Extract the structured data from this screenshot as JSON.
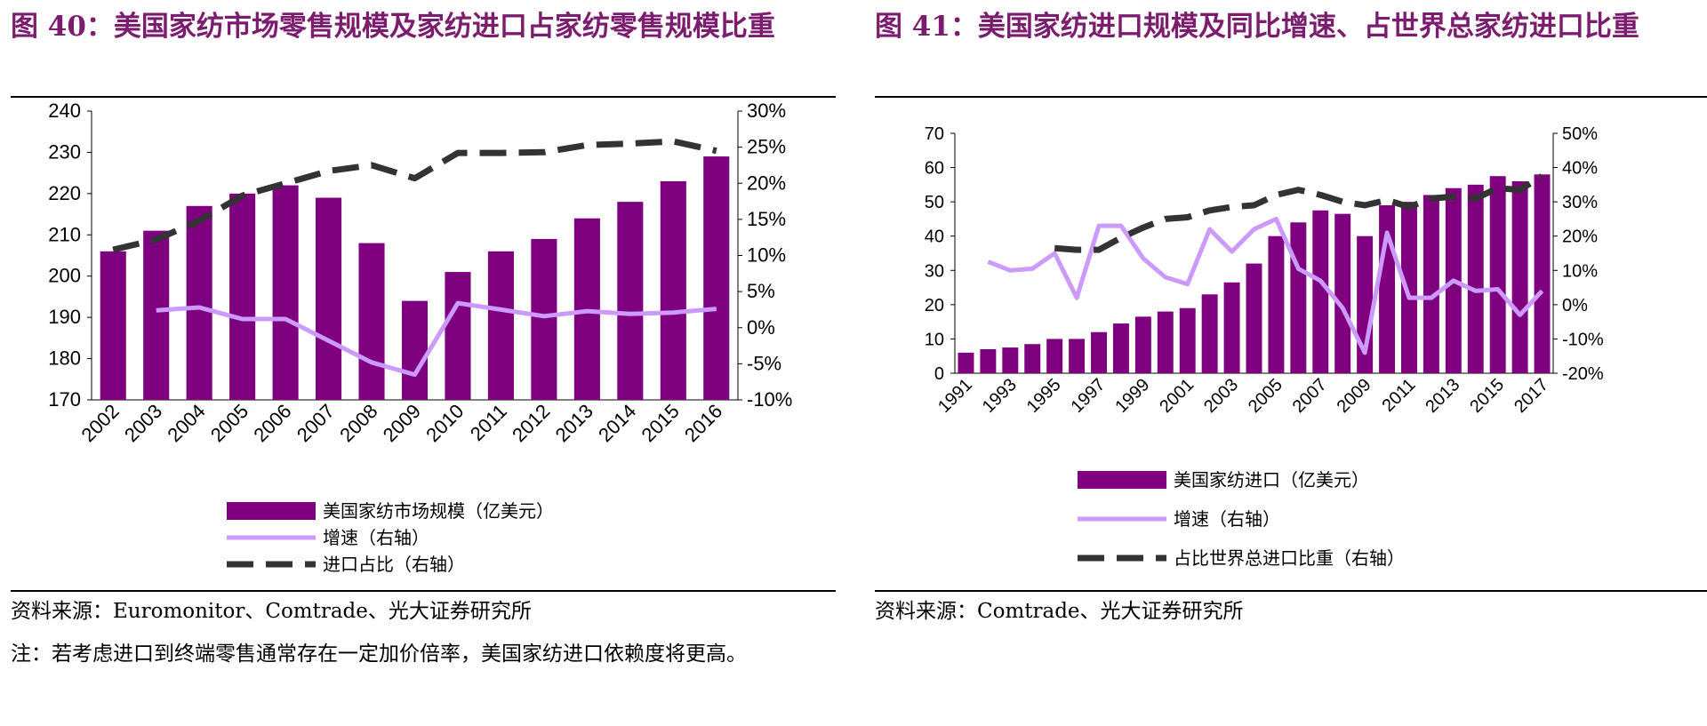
{
  "left": {
    "title": "图 40：美国家纺市场零售规模及家纺进口占家纺零售规模比重",
    "source": "资料来源：Euromonitor、Comtrade、光大证券研究所",
    "note": "注：若考虑进口到终端零售通常存在一定加价倍率，美国家纺进口依赖度将更高。"
  },
  "right": {
    "title": "图 41：美国家纺进口规模及同比增速、占世界总家纺进口比重",
    "source": "资料来源：Comtrade、光大证券研究所"
  },
  "colors": {
    "bar": "#7f007f",
    "growth": "#cc99ff",
    "share": "#333333",
    "title": "#7b1c6e"
  },
  "chart_data": [
    {
      "type": "bar",
      "categories": [
        "2002",
        "2003",
        "2004",
        "2005",
        "2006",
        "2007",
        "2008",
        "2009",
        "2010",
        "2011",
        "2012",
        "2013",
        "2014",
        "2015",
        "2016"
      ],
      "series": [
        {
          "name": "美国家纺市场规模（亿美元）",
          "type": "bar",
          "axis": "left",
          "values": [
            206,
            211,
            217,
            220,
            222,
            219,
            208,
            194,
            201,
            206,
            209,
            214,
            218,
            223,
            229
          ]
        },
        {
          "name": "增速（右轴）",
          "type": "line",
          "axis": "right",
          "x": [
            "2003",
            "2004",
            "2005",
            "2006",
            "2007",
            "2008",
            "2009",
            "2010",
            "2011",
            "2012",
            "2013",
            "2014",
            "2015",
            "2016"
          ],
          "values": [
            2.4,
            2.8,
            1.2,
            1.2,
            -1.8,
            -4.8,
            -6.5,
            3.4,
            2.5,
            1.6,
            2.3,
            1.9,
            2.1,
            2.6
          ]
        },
        {
          "name": "进口占比（右轴）",
          "type": "line",
          "style": "dashed",
          "axis": "right",
          "values": [
            10.8,
            12.2,
            14.8,
            18.3,
            20.0,
            21.7,
            22.5,
            20.7,
            24.2,
            24.2,
            24.3,
            25.3,
            25.5,
            25.8,
            24.5
          ]
        }
      ],
      "y_left": {
        "min": 170,
        "max": 240,
        "step": 10
      },
      "y_right": {
        "min": -10,
        "max": 30,
        "step": 5,
        "unit": "%"
      },
      "legend": "bottom"
    },
    {
      "type": "bar",
      "categories": [
        "1991",
        "1992",
        "1993",
        "1994",
        "1995",
        "1996",
        "1997",
        "1998",
        "1999",
        "2000",
        "2001",
        "2002",
        "2003",
        "2004",
        "2005",
        "2006",
        "2007",
        "2008",
        "2009",
        "2010",
        "2011",
        "2012",
        "2013",
        "2014",
        "2015",
        "2016",
        "2017"
      ],
      "x_tick_labels": [
        "1991",
        "1993",
        "1995",
        "1997",
        "1999",
        "2001",
        "2003",
        "2005",
        "2007",
        "2009",
        "2011",
        "2013",
        "2015",
        "2017"
      ],
      "series": [
        {
          "name": "美国家纺进口（亿美元）",
          "type": "bar",
          "axis": "left",
          "values": [
            6,
            7,
            7.5,
            8.5,
            10,
            10,
            12,
            14.5,
            16.5,
            18,
            19,
            23,
            26.5,
            32,
            40,
            44,
            47.5,
            46.5,
            40,
            49,
            50,
            52,
            54,
            55,
            57.5,
            56,
            58
          ]
        },
        {
          "name": "增速（右轴）",
          "type": "line",
          "axis": "right",
          "x": [
            "1992",
            "1993",
            "1994",
            "1995",
            "1996",
            "1997",
            "1998",
            "1999",
            "2000",
            "2001",
            "2002",
            "2003",
            "2004",
            "2005",
            "2006",
            "2007",
            "2008",
            "2009",
            "2010",
            "2011",
            "2012",
            "2013",
            "2014",
            "2015",
            "2016",
            "2017"
          ],
          "values": [
            12.5,
            10,
            10.5,
            15,
            2,
            23,
            23,
            13.5,
            8,
            6,
            22,
            15.5,
            22,
            25,
            10.5,
            7,
            -1,
            -14,
            21,
            2,
            2,
            7,
            4,
            4.5,
            -3,
            4
          ]
        },
        {
          "name": "占比世界总进口比重（右轴）",
          "type": "line",
          "style": "dashed",
          "axis": "right",
          "x": [
            "1995",
            "1996",
            "1997",
            "1998",
            "1999",
            "2000",
            "2001",
            "2002",
            "2003",
            "2004",
            "2005",
            "2006",
            "2007",
            "2008",
            "2009",
            "2010",
            "2011",
            "2012",
            "2013",
            "2014",
            "2015",
            "2016",
            "2017"
          ],
          "values": [
            16.5,
            16,
            16,
            19.5,
            22.5,
            25,
            25.5,
            27.5,
            28.5,
            29,
            32,
            33.5,
            32,
            30,
            29,
            30.5,
            28.5,
            31,
            31.5,
            31,
            34,
            33.5,
            37.5
          ]
        }
      ],
      "y_left": {
        "min": 0,
        "max": 70,
        "step": 10
      },
      "y_right": {
        "min": -20,
        "max": 50,
        "step": 10,
        "unit": "%"
      },
      "legend": "bottom"
    }
  ]
}
